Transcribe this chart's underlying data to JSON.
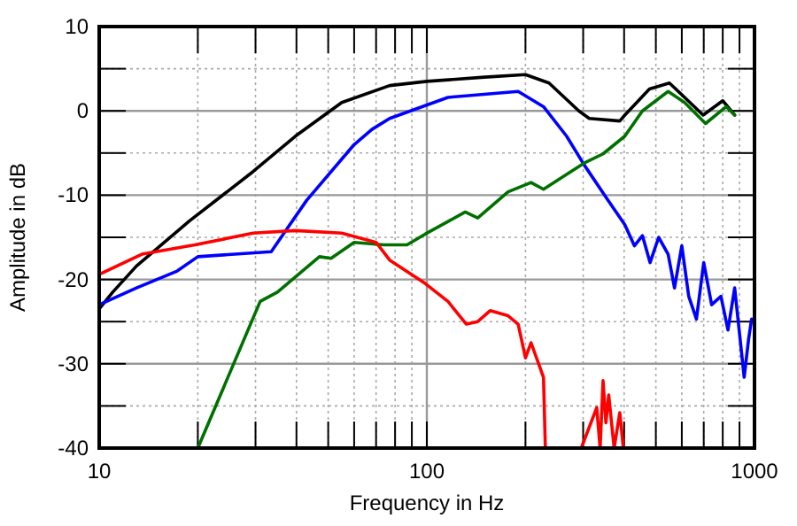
{
  "chart_data": {
    "type": "line",
    "xlabel": "Frequency in Hz",
    "ylabel": "Amplitude in dB",
    "log": "x",
    "grid": true,
    "line_style": "solid",
    "marker": "none",
    "xlim": [
      10,
      1000
    ],
    "ylim": [
      -40,
      10
    ],
    "xticks": [
      10,
      {
        "value": 20,
        "label": null
      },
      {
        "value": 30,
        "label": null
      },
      {
        "value": 40,
        "label": null
      },
      {
        "value": 50,
        "label": null
      },
      {
        "value": 60,
        "label": null
      },
      {
        "value": 70,
        "label": null
      },
      {
        "value": 80,
        "label": null
      },
      {
        "value": 90,
        "label": null
      },
      100,
      {
        "value": 200,
        "label": null
      },
      {
        "value": 300,
        "label": null
      },
      {
        "value": 400,
        "label": null
      },
      {
        "value": 500,
        "label": null
      },
      {
        "value": 600,
        "label": null
      },
      {
        "value": 700,
        "label": null
      },
      {
        "value": 800,
        "label": null
      },
      {
        "value": 900,
        "label": null
      },
      1000
    ],
    "yticks": [
      -40,
      {
        "value": -35,
        "label": null
      },
      -30,
      {
        "value": -25,
        "label": null
      },
      -20,
      {
        "value": -15,
        "label": null
      },
      -10,
      {
        "value": -5,
        "label": null
      },
      0,
      {
        "value": 5,
        "label": null
      },
      10
    ],
    "series": [
      {
        "color": "#000000",
        "x": [
          10,
          11,
          13,
          18.8,
          29.5,
          39.7,
          55,
          77,
          100,
          150,
          200,
          236,
          291,
          313,
          388,
          402,
          478,
          550,
          612,
          697,
          800,
          870
        ],
        "values": [
          -23.5,
          -21.5,
          -18.4,
          -13.1,
          -7.2,
          -3,
          1,
          3,
          3.5,
          4,
          4.3,
          3.3,
          0,
          -0.9,
          -1.2,
          -0.5,
          2.6,
          3.3,
          1.6,
          -0.5,
          1.2,
          -0.5
        ]
      },
      {
        "color": "#0000ff",
        "x": [
          10,
          13,
          17.3,
          20,
          33.5,
          43,
          60,
          68,
          77,
          116,
          190,
          227,
          267,
          302,
          357,
          402,
          430,
          455,
          480,
          510,
          545,
          570,
          600,
          630,
          665,
          700,
          740,
          790,
          830,
          870,
          930,
          960,
          980
        ],
        "values": [
          -23,
          -21,
          -19,
          -17.3,
          -16.7,
          -10.6,
          -4,
          -2.2,
          -0.9,
          1.6,
          2.3,
          0.5,
          -3,
          -6.4,
          -10.6,
          -13.5,
          -16,
          -14.8,
          -18,
          -15,
          -17,
          -21,
          -16,
          -22,
          -24.7,
          -18,
          -23,
          -22,
          -26,
          -21,
          -31.6,
          -27,
          -24.7
        ]
      },
      {
        "color": "#007000",
        "x": [
          20,
          31,
          35,
          47,
          51,
          60,
          74,
          87,
          99,
          131,
          143,
          177,
          208,
          227,
          258,
          302,
          345,
          402,
          455,
          545,
          612,
          709,
          820,
          870
        ],
        "values": [
          -40,
          -22.6,
          -21.5,
          -17.3,
          -17.5,
          -15.6,
          -15.9,
          -15.9,
          -14.6,
          -12,
          -12.7,
          -9.6,
          -8.5,
          -9.3,
          -7.9,
          -6.2,
          -5.1,
          -3,
          0,
          2.3,
          1,
          -1.5,
          0.5,
          -0.5
        ]
      },
      {
        "color": "#ff0000",
        "x": [
          10,
          13.5,
          19.6,
          29.5,
          39.7,
          55,
          70,
          77,
          99,
          116,
          132,
          143,
          156,
          177,
          190,
          200,
          208,
          227,
          230
        ],
        "values": [
          -19.4,
          -17,
          -15.9,
          -14.5,
          -14.2,
          -14.5,
          -15.6,
          -17.7,
          -20.5,
          -22.6,
          -25.3,
          -25,
          -23.7,
          -24.3,
          -25.3,
          -29.3,
          -27.5,
          -31.6,
          -40
        ]
      },
      {
        "color": "#ff0000",
        "x": [
          296,
          330,
          338,
          345,
          352,
          359,
          373,
          388,
          398
        ],
        "values": [
          -40,
          -35.2,
          -40,
          -32,
          -37,
          -33.7,
          -40,
          -35.8,
          -40
        ]
      }
    ]
  }
}
